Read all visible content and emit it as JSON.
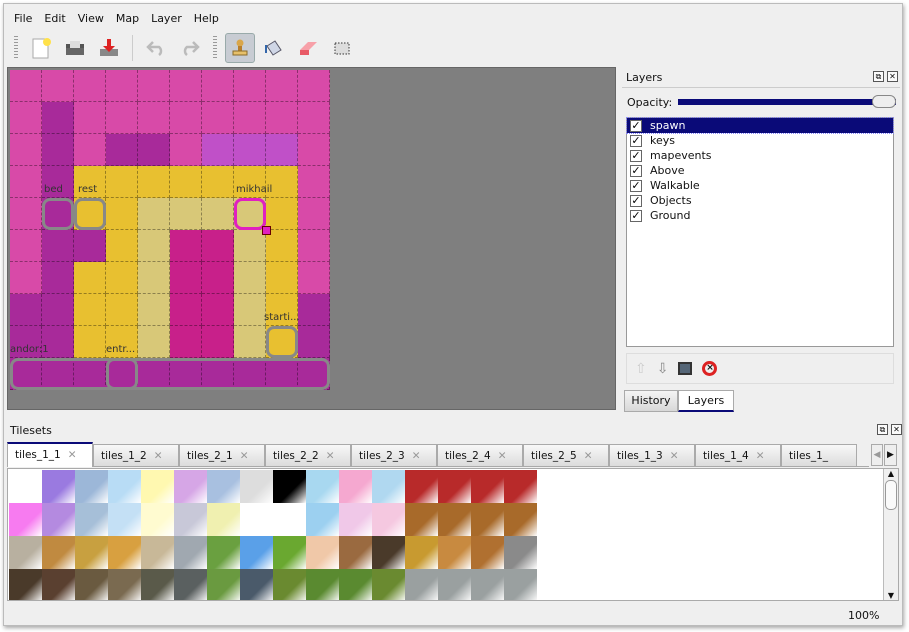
{
  "menu": [
    "File",
    "Edit",
    "View",
    "Map",
    "Layer",
    "Help"
  ],
  "toolbar": {
    "icons": [
      "new-file-icon",
      "open-icon",
      "save-icon",
      "undo-icon",
      "redo-icon",
      "stamp-brush-icon",
      "bucket-fill-icon",
      "eraser-icon",
      "rect-select-icon"
    ],
    "active": "stamp-brush-icon"
  },
  "map": {
    "objects": [
      {
        "label": "bed"
      },
      {
        "label": "rest"
      },
      {
        "label": "mikhail"
      },
      {
        "label": "starti..."
      },
      {
        "label": "andor:1"
      },
      {
        "label": "entr..."
      }
    ]
  },
  "layers": {
    "title": "Layers",
    "opacity_label": "Opacity:",
    "opacity": 1.0,
    "items": [
      {
        "name": "spawn",
        "visible": true,
        "selected": true
      },
      {
        "name": "keys",
        "visible": true
      },
      {
        "name": "mapevents",
        "visible": true
      },
      {
        "name": "Above",
        "visible": true
      },
      {
        "name": "Walkable",
        "visible": true
      },
      {
        "name": "Objects",
        "visible": true
      },
      {
        "name": "Ground",
        "visible": true
      }
    ],
    "tabs": [
      "History",
      "Layers"
    ],
    "active_tab": "Layers"
  },
  "tilesets": {
    "title": "Tilesets",
    "tabs": [
      "tiles_1_1",
      "tiles_1_2",
      "tiles_2_1",
      "tiles_2_2",
      "tiles_2_3",
      "tiles_2_4",
      "tiles_2_5",
      "tiles_1_3",
      "tiles_1_4",
      "tiles_1_"
    ],
    "active": "tiles_1_1"
  },
  "status": {
    "zoom": "100%"
  },
  "colors": {
    "selection": "#0a0a78",
    "map_bg": "#7f7f7f",
    "selected_object": "#e020c0"
  }
}
